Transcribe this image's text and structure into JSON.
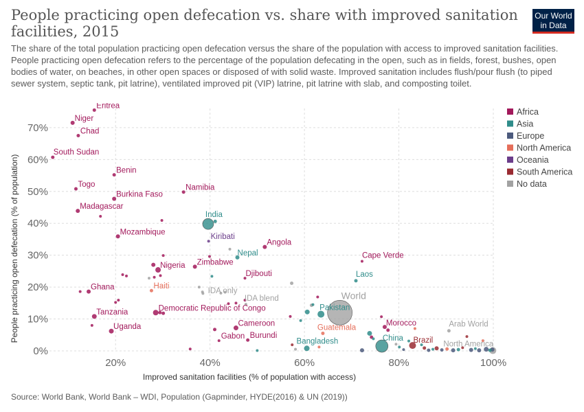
{
  "header": {
    "title": "People practicing open defecation vs. share with improved sanitation facilities, 2015",
    "subtitle": "The share of the total population practicing open defecation versus the share of the population with access to improved sanitation facilities. People practicing open defecation refers to the percentage of the population defecating in the open, such as in fields, forest, bushes, open bodies of water, on beaches, in other open spaces or disposed of with solid waste. Improved sanitation includes flush/pour flush (to piped sewer system, septic tank, pit latrine), ventilated improved pit (VIP) latrine, pit latrine with slab, and composting toilet."
  },
  "logo": {
    "line1": "Our World",
    "line2": "in Data",
    "bg_color": "#002147",
    "accent_color": "#d42b21"
  },
  "footer": {
    "source": "Source: World Bank, World Bank – WDI, Population (Gapminder, HYDE(2016) & UN (2019))"
  },
  "chart_data": {
    "type": "scatter",
    "xlabel": "Improved sanitation facilities (% of population with access)",
    "ylabel": "People practicing open defecation (% of population)",
    "xlim": [
      6,
      100
    ],
    "ylim": [
      0,
      76
    ],
    "xticks": [
      20,
      40,
      60,
      80,
      100
    ],
    "yticks": [
      0,
      10,
      20,
      30,
      40,
      50,
      60,
      70
    ],
    "xtick_labels": [
      "20%",
      "40%",
      "60%",
      "80%",
      "100%"
    ],
    "ytick_labels": [
      "0%",
      "10%",
      "20%",
      "30%",
      "40%",
      "50%",
      "60%",
      "70%"
    ],
    "grid": "horizontal dashed",
    "legend_position": "right",
    "legend": [
      {
        "name": "Africa",
        "color": "#a2195b"
      },
      {
        "name": "Asia",
        "color": "#2f8c8a"
      },
      {
        "name": "Europe",
        "color": "#4c5a7d"
      },
      {
        "name": "North America",
        "color": "#e56e5a"
      },
      {
        "name": "Oceania",
        "color": "#6b3d8a"
      },
      {
        "name": "South America",
        "color": "#9a2b32"
      },
      {
        "name": "No data",
        "color": "#a2a2a2"
      }
    ],
    "labeled_points": [
      {
        "label": "Eritrea",
        "x": 15.5,
        "y": 75.5,
        "region": "Africa",
        "r": 2.5
      },
      {
        "label": "Niger",
        "x": 10.9,
        "y": 71.5,
        "region": "Africa",
        "r": 3
      },
      {
        "label": "Chad",
        "x": 12.1,
        "y": 67.5,
        "region": "Africa",
        "r": 2.5
      },
      {
        "label": "South Sudan",
        "x": 6.7,
        "y": 60.7,
        "region": "Africa",
        "r": 2.5
      },
      {
        "label": "Benin",
        "x": 19.7,
        "y": 55.2,
        "region": "Africa",
        "r": 2.5
      },
      {
        "label": "Togo",
        "x": 11.6,
        "y": 50.8,
        "region": "Africa",
        "r": 2.5
      },
      {
        "label": "Burkina Faso",
        "x": 19.7,
        "y": 47.7,
        "region": "Africa",
        "r": 3
      },
      {
        "label": "Namibia",
        "x": 34.4,
        "y": 49.8,
        "region": "Africa",
        "r": 2.5
      },
      {
        "label": "Madagascar",
        "x": 12.0,
        "y": 43.9,
        "region": "Africa",
        "r": 3
      },
      {
        "label": "India",
        "x": 39.6,
        "y": 39.8,
        "region": "Asia",
        "r": 8
      },
      {
        "label": "Mozambique",
        "x": 20.5,
        "y": 35.9,
        "region": "Africa",
        "r": 3
      },
      {
        "label": "Kiribati",
        "x": 39.7,
        "y": 34.4,
        "region": "Oceania",
        "r": 2
      },
      {
        "label": "Angola",
        "x": 51.6,
        "y": 32.6,
        "region": "Africa",
        "r": 3
      },
      {
        "label": "Nepal",
        "x": 45.8,
        "y": 29.3,
        "region": "Asia",
        "r": 3
      },
      {
        "label": "Cape Verde",
        "x": 72.2,
        "y": 28.1,
        "region": "Africa",
        "r": 2
      },
      {
        "label": "Zimbabwe",
        "x": 36.8,
        "y": 26.4,
        "region": "Africa",
        "r": 3
      },
      {
        "label": "Nigeria",
        "x": 29.0,
        "y": 25.4,
        "region": "Africa",
        "r": 4
      },
      {
        "label": "Djibouti",
        "x": 47.4,
        "y": 22.8,
        "region": "Africa",
        "r": 2
      },
      {
        "label": "Laos",
        "x": 70.9,
        "y": 22.0,
        "region": "Asia",
        "r": 2.5
      },
      {
        "label": "Haiti",
        "x": 27.6,
        "y": 18.9,
        "region": "North America",
        "r": 2.5
      },
      {
        "label": "Ghana",
        "x": 14.3,
        "y": 18.6,
        "region": "Africa",
        "r": 3
      },
      {
        "label": "IDA only",
        "x": 38.4,
        "y": 18.5,
        "region": "No data",
        "r": 2
      },
      {
        "label": "IDA blend",
        "x": 47.6,
        "y": 14.6,
        "region": "No data",
        "r": 2
      },
      {
        "label": "World",
        "x": 67.5,
        "y": 12.0,
        "region": "No data",
        "r": 18
      },
      {
        "label": "Pakistan",
        "x": 63.5,
        "y": 11.5,
        "region": "Asia",
        "r": 5
      },
      {
        "label": "Democratic Republic of Congo",
        "x": 28.5,
        "y": 12.0,
        "region": "Africa",
        "r": 4
      },
      {
        "label": "Tanzania",
        "x": 15.5,
        "y": 10.8,
        "region": "Africa",
        "r": 3.5
      },
      {
        "label": "Morocco",
        "x": 77.0,
        "y": 7.5,
        "region": "Africa",
        "r": 3
      },
      {
        "label": "Cameroon",
        "x": 45.5,
        "y": 7.2,
        "region": "Africa",
        "r": 3.5
      },
      {
        "label": "Uganda",
        "x": 19.1,
        "y": 6.2,
        "region": "Africa",
        "r": 3.5
      },
      {
        "label": "Arab World",
        "x": 90.6,
        "y": 6.3,
        "region": "No data",
        "r": 2.5
      },
      {
        "label": "Guatemala",
        "x": 63.9,
        "y": 5.5,
        "region": "North America",
        "r": 2.5
      },
      {
        "label": "Gabon",
        "x": 41.9,
        "y": 3.2,
        "region": "Africa",
        "r": 2
      },
      {
        "label": "Burundi",
        "x": 48.0,
        "y": 3.4,
        "region": "Africa",
        "r": 2.5
      },
      {
        "label": "Brazil",
        "x": 82.9,
        "y": 1.7,
        "region": "South America",
        "r": 5
      },
      {
        "label": "China",
        "x": 76.4,
        "y": 1.5,
        "region": "Asia",
        "r": 9
      },
      {
        "label": "Bangladesh",
        "x": 60.5,
        "y": 0.8,
        "region": "Asia",
        "r": 4
      },
      {
        "label": "North America",
        "x": 99.9,
        "y": 0.1,
        "region": "No data",
        "r": 5
      }
    ],
    "other_points": [
      {
        "x": 41.1,
        "y": 40.6,
        "region": "Asia",
        "r": 2.5
      },
      {
        "x": 29.8,
        "y": 40.9,
        "region": "Africa",
        "r": 2
      },
      {
        "x": 16.8,
        "y": 42.2,
        "region": "Africa",
        "r": 2
      },
      {
        "x": 44.2,
        "y": 31.9,
        "region": "No data",
        "r": 2
      },
      {
        "x": 39.9,
        "y": 29.6,
        "region": "Africa",
        "r": 2
      },
      {
        "x": 30.1,
        "y": 29.9,
        "region": "Africa",
        "r": 2
      },
      {
        "x": 28.0,
        "y": 27.0,
        "region": "Africa",
        "r": 3
      },
      {
        "x": 21.5,
        "y": 23.9,
        "region": "Africa",
        "r": 2
      },
      {
        "x": 22.3,
        "y": 23.5,
        "region": "Africa",
        "r": 2
      },
      {
        "x": 27.1,
        "y": 22.8,
        "region": "No data",
        "r": 2
      },
      {
        "x": 28.2,
        "y": 23.1,
        "region": "Africa",
        "r": 2
      },
      {
        "x": 29.5,
        "y": 23.6,
        "region": "Africa",
        "r": 2
      },
      {
        "x": 40.4,
        "y": 23.4,
        "region": "Asia",
        "r": 2
      },
      {
        "x": 12.5,
        "y": 18.6,
        "region": "Africa",
        "r": 2
      },
      {
        "x": 37.7,
        "y": 20.0,
        "region": "No data",
        "r": 2
      },
      {
        "x": 38.5,
        "y": 18.0,
        "region": "No data",
        "r": 2
      },
      {
        "x": 42.3,
        "y": 18.1,
        "region": "No data",
        "r": 2
      },
      {
        "x": 43.2,
        "y": 18.4,
        "region": "No data",
        "r": 2
      },
      {
        "x": 57.3,
        "y": 21.2,
        "region": "No data",
        "r": 2.5
      },
      {
        "x": 20.6,
        "y": 15.9,
        "region": "Africa",
        "r": 2
      },
      {
        "x": 20.0,
        "y": 15.2,
        "region": "Africa",
        "r": 2
      },
      {
        "x": 45.5,
        "y": 15.0,
        "region": "Africa",
        "r": 2
      },
      {
        "x": 43.9,
        "y": 14.8,
        "region": "Africa",
        "r": 2
      },
      {
        "x": 47.4,
        "y": 15.9,
        "region": "Africa",
        "r": 2
      },
      {
        "x": 62.8,
        "y": 16.9,
        "region": "Africa",
        "r": 2
      },
      {
        "x": 61.8,
        "y": 14.5,
        "region": "Asia",
        "r": 2
      },
      {
        "x": 61.5,
        "y": 14.3,
        "region": "No data",
        "r": 2.5
      },
      {
        "x": 60.6,
        "y": 12.2,
        "region": "Asia",
        "r": 3.5
      },
      {
        "x": 57.0,
        "y": 10.8,
        "region": "Africa",
        "r": 2
      },
      {
        "x": 59.2,
        "y": 9.5,
        "region": "Asia",
        "r": 2
      },
      {
        "x": 15.0,
        "y": 8.0,
        "region": "Africa",
        "r": 2
      },
      {
        "x": 29.4,
        "y": 12.0,
        "region": "Africa",
        "r": 2.5
      },
      {
        "x": 30.1,
        "y": 11.8,
        "region": "Africa",
        "r": 2.5
      },
      {
        "x": 76.3,
        "y": 10.7,
        "region": "Africa",
        "r": 2
      },
      {
        "x": 41.0,
        "y": 6.7,
        "region": "Africa",
        "r": 2.5
      },
      {
        "x": 73.8,
        "y": 5.5,
        "region": "Asia",
        "r": 3.5
      },
      {
        "x": 74.2,
        "y": 4.3,
        "region": "Africa",
        "r": 2.5
      },
      {
        "x": 74.6,
        "y": 3.8,
        "region": "Asia",
        "r": 2
      },
      {
        "x": 35.8,
        "y": 0.6,
        "region": "Africa",
        "r": 2
      },
      {
        "x": 50.0,
        "y": 0.1,
        "region": "Asia",
        "r": 2
      },
      {
        "x": 57.4,
        "y": 1.9,
        "region": "South America",
        "r": 2
      },
      {
        "x": 58.1,
        "y": 0.5,
        "region": "No data",
        "r": 2
      },
      {
        "x": 63.1,
        "y": 1.2,
        "region": "North America",
        "r": 2
      },
      {
        "x": 72.2,
        "y": 0.2,
        "region": "Europe",
        "r": 3
      },
      {
        "x": 77.7,
        "y": 6.5,
        "region": "Africa",
        "r": 2.5
      },
      {
        "x": 79.4,
        "y": 2.1,
        "region": "No data",
        "r": 2
      },
      {
        "x": 80.1,
        "y": 1.2,
        "region": "Asia",
        "r": 2
      },
      {
        "x": 81.0,
        "y": 0.4,
        "region": "Europe",
        "r": 2
      },
      {
        "x": 82.1,
        "y": 3.1,
        "region": "Asia",
        "r": 2
      },
      {
        "x": 83.4,
        "y": 7.0,
        "region": "North America",
        "r": 2
      },
      {
        "x": 84.8,
        "y": 1.9,
        "region": "Asia",
        "r": 2
      },
      {
        "x": 85.4,
        "y": 0.9,
        "region": "South America",
        "r": 2.5
      },
      {
        "x": 86.3,
        "y": 0.2,
        "region": "Europe",
        "r": 2.5
      },
      {
        "x": 87.2,
        "y": 0.5,
        "region": "Asia",
        "r": 2
      },
      {
        "x": 88.0,
        "y": 0.8,
        "region": "South America",
        "r": 3
      },
      {
        "x": 89.1,
        "y": 0.3,
        "region": "Europe",
        "r": 2.5
      },
      {
        "x": 90.2,
        "y": 0.6,
        "region": "North America",
        "r": 2.5
      },
      {
        "x": 91.5,
        "y": 0.2,
        "region": "Europe",
        "r": 3
      },
      {
        "x": 92.6,
        "y": 0.4,
        "region": "Asia",
        "r": 2.5
      },
      {
        "x": 93.5,
        "y": 1.0,
        "region": "South America",
        "r": 2
      },
      {
        "x": 94.4,
        "y": 4.5,
        "region": "South America",
        "r": 2
      },
      {
        "x": 95.3,
        "y": 0.3,
        "region": "Europe",
        "r": 3
      },
      {
        "x": 96.2,
        "y": 0.7,
        "region": "Asia",
        "r": 2
      },
      {
        "x": 97.0,
        "y": 0.2,
        "region": "Europe",
        "r": 3
      },
      {
        "x": 97.8,
        "y": 3.2,
        "region": "North America",
        "r": 2
      },
      {
        "x": 98.5,
        "y": 0.5,
        "region": "Europe",
        "r": 3.5
      },
      {
        "x": 99.3,
        "y": 0.2,
        "region": "Asia",
        "r": 2.5
      },
      {
        "x": 99.8,
        "y": 0.4,
        "region": "Europe",
        "r": 3
      }
    ]
  }
}
